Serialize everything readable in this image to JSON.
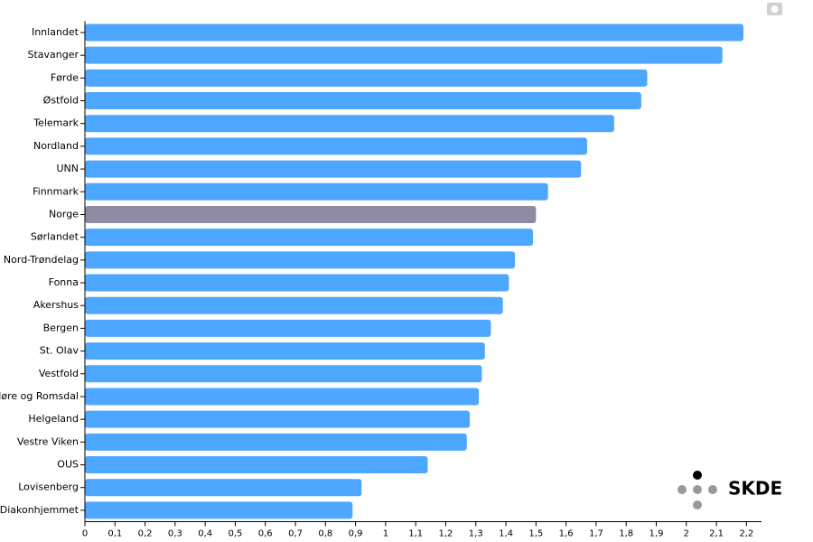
{
  "chart_data": {
    "type": "barh",
    "categories": [
      "Innlandet",
      "Stavanger",
      "Førde",
      "Østfold",
      "Telemark",
      "Nordland",
      "UNN",
      "Finnmark",
      "Norge",
      "Sørlandet",
      "Nord-Trøndelag",
      "Fonna",
      "Akershus",
      "Bergen",
      "St. Olav",
      "Vestfold",
      "Møre og Romsdal",
      "Helgeland",
      "Vestre Viken",
      "OUS",
      "Lovisenberg",
      "Diakonhjemmet"
    ],
    "values": [
      2.19,
      2.12,
      1.87,
      1.85,
      1.76,
      1.67,
      1.65,
      1.54,
      1.5,
      1.49,
      1.43,
      1.41,
      1.39,
      1.35,
      1.33,
      1.32,
      1.31,
      1.28,
      1.27,
      1.14,
      0.92,
      0.89
    ],
    "colors": [
      "#4da6ff",
      "#4da6ff",
      "#4da6ff",
      "#4da6ff",
      "#4da6ff",
      "#4da6ff",
      "#4da6ff",
      "#4da6ff",
      "#8f8ba3",
      "#4da6ff",
      "#4da6ff",
      "#4da6ff",
      "#4da6ff",
      "#4da6ff",
      "#4da6ff",
      "#4da6ff",
      "#4da6ff",
      "#4da6ff",
      "#4da6ff",
      "#4da6ff",
      "#4da6ff",
      "#4da6ff"
    ],
    "xlim": [
      0,
      2.25
    ],
    "xticks": [
      0,
      {
        "value": 0.1,
        "label": "0,1"
      },
      {
        "value": 0.2,
        "label": "0,2"
      },
      {
        "value": 0.3,
        "label": "0,3"
      },
      {
        "value": 0.4,
        "label": "0,4"
      },
      {
        "value": 0.5,
        "label": "0,5"
      },
      {
        "value": 0.6,
        "label": "0,6"
      },
      {
        "value": 0.7,
        "label": "0,7"
      },
      {
        "value": 0.8,
        "label": "0,8"
      },
      {
        "value": 0.9,
        "label": "0,9"
      },
      1,
      {
        "value": 1.1,
        "label": "1,1"
      },
      {
        "value": 1.2,
        "label": "1,2"
      },
      {
        "value": 1.3,
        "label": "1,3"
      },
      {
        "value": 1.4,
        "label": "1,4"
      },
      {
        "value": 1.5,
        "label": "1,5"
      },
      {
        "value": 1.6,
        "label": "1,6"
      },
      {
        "value": 1.7,
        "label": "1,7"
      },
      {
        "value": 1.8,
        "label": "1,8"
      },
      {
        "value": 1.9,
        "label": "1,9"
      },
      2,
      {
        "value": 2.1,
        "label": "2,1"
      },
      {
        "value": 2.2,
        "label": "2,2"
      }
    ],
    "logo": "SKDE"
  }
}
